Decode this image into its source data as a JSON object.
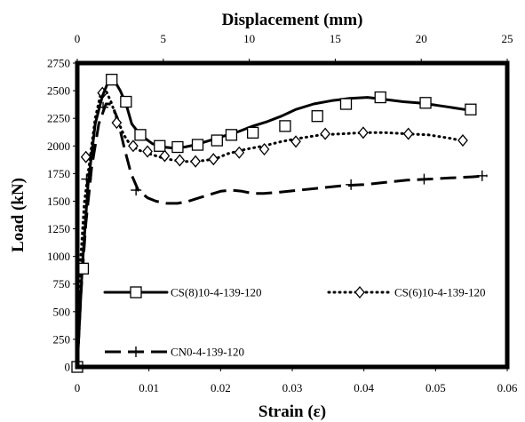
{
  "chart_data": {
    "type": "line",
    "title": "",
    "xlabel": "Strain (ε)",
    "x2label": "Displacement (mm)",
    "ylabel": "Load (kN)",
    "xlim": [
      0,
      0.06
    ],
    "x2lim": [
      0,
      25
    ],
    "ylim": [
      0,
      2750
    ],
    "xticks": [
      "0",
      "0.01",
      "0.02",
      "0.03",
      "0.04",
      "0.05",
      "0.06"
    ],
    "x2ticks": [
      "0",
      "5",
      "10",
      "15",
      "20",
      "25"
    ],
    "yticks": [
      "0",
      "250",
      "500",
      "750",
      "1000",
      "1250",
      "1500",
      "1750",
      "2000",
      "2250",
      "2500",
      "2750"
    ],
    "grid": false,
    "legend_position": "inside-bottom",
    "series": [
      {
        "name": "CS(8)10-4-139-120",
        "line": "solid",
        "marker": "square",
        "color": "#000000",
        "x": [
          0,
          0.0007,
          0.0015,
          0.0025,
          0.0035,
          0.0045,
          0.0052,
          0.006,
          0.0068,
          0.0076,
          0.0088,
          0.0105,
          0.012,
          0.0135,
          0.015,
          0.0165,
          0.018,
          0.0195,
          0.021,
          0.0225,
          0.0245,
          0.0265,
          0.0285,
          0.0305,
          0.033,
          0.0355,
          0.038,
          0.0405,
          0.043,
          0.0455,
          0.0475,
          0.05,
          0.052,
          0.054
        ],
        "y": [
          0,
          900,
          1650,
          2200,
          2450,
          2610,
          2590,
          2500,
          2380,
          2200,
          2100,
          2020,
          1990,
          1980,
          1990,
          2010,
          2040,
          2070,
          2100,
          2130,
          2180,
          2220,
          2270,
          2330,
          2380,
          2410,
          2430,
          2440,
          2420,
          2400,
          2390,
          2370,
          2350,
          2330
        ],
        "marker_x": [
          0,
          0.0008,
          0.0048,
          0.0068,
          0.0088,
          0.0115,
          0.014,
          0.0168,
          0.0195,
          0.0215,
          0.0245,
          0.029,
          0.0335,
          0.0375,
          0.0423,
          0.0486,
          0.0549
        ],
        "marker_y": [
          0,
          890,
          2600,
          2400,
          2100,
          2000,
          1990,
          2010,
          2050,
          2100,
          2120,
          2180,
          2270,
          2380,
          2440,
          2390,
          2330
        ]
      },
      {
        "name": "CS(6)10-4-139-120",
        "line": "dotted",
        "marker": "diamond",
        "color": "#000000",
        "x": [
          0,
          0.0005,
          0.001,
          0.0018,
          0.0025,
          0.0033,
          0.004,
          0.0047,
          0.0055,
          0.0065,
          0.0075,
          0.009,
          0.0105,
          0.012,
          0.0135,
          0.015,
          0.0165,
          0.018,
          0.0195,
          0.021,
          0.0235,
          0.026,
          0.0285,
          0.031,
          0.034,
          0.037,
          0.04,
          0.043,
          0.046,
          0.049,
          0.052,
          0.0535
        ],
        "y": [
          0,
          1000,
          1500,
          1900,
          2250,
          2480,
          2500,
          2400,
          2250,
          2100,
          2000,
          1950,
          1920,
          1890,
          1870,
          1860,
          1860,
          1870,
          1890,
          1930,
          1970,
          2000,
          2040,
          2070,
          2100,
          2110,
          2120,
          2120,
          2110,
          2100,
          2070,
          2050
        ],
        "marker_x": [
          0.0012,
          0.0035,
          0.0055,
          0.0078,
          0.0098,
          0.0122,
          0.0143,
          0.0165,
          0.019,
          0.0226,
          0.0261,
          0.0305,
          0.0346,
          0.0399,
          0.0462,
          0.0538
        ],
        "marker_y": [
          1900,
          2480,
          2210,
          2000,
          1950,
          1910,
          1870,
          1860,
          1880,
          1940,
          1970,
          2040,
          2110,
          2120,
          2110,
          2050
        ]
      },
      {
        "name": "CN0-4-139-120",
        "line": "long-dash",
        "marker": "plus",
        "color": "#000000",
        "x": [
          0,
          0.0005,
          0.0012,
          0.002,
          0.003,
          0.004,
          0.0048,
          0.0056,
          0.0065,
          0.0075,
          0.0085,
          0.0098,
          0.011,
          0.0125,
          0.014,
          0.0155,
          0.017,
          0.0185,
          0.02,
          0.0215,
          0.023,
          0.0245,
          0.026,
          0.028,
          0.031,
          0.034,
          0.037,
          0.04,
          0.043,
          0.046,
          0.049,
          0.052,
          0.055,
          0.0572
        ],
        "y": [
          0,
          650,
          1300,
          1800,
          2200,
          2380,
          2380,
          2250,
          2000,
          1750,
          1600,
          1530,
          1500,
          1480,
          1480,
          1500,
          1530,
          1560,
          1590,
          1600,
          1590,
          1570,
          1570,
          1580,
          1600,
          1620,
          1640,
          1650,
          1670,
          1690,
          1700,
          1710,
          1720,
          1730
        ],
        "marker_x": [
          0.0013,
          0.0036,
          0.0082,
          0.0382,
          0.0484,
          0.0565
        ],
        "marker_y": [
          1700,
          2350,
          1600,
          1650,
          1700,
          1730
        ]
      }
    ]
  }
}
